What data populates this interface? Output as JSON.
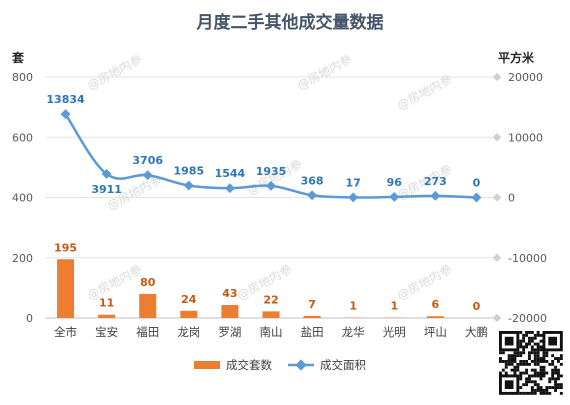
{
  "chart_data": {
    "type": "bar+line",
    "title": "月度二手其他成交量数据",
    "left_axis_unit": "套",
    "right_axis_unit": "平方米",
    "categories": [
      "全市",
      "宝安",
      "福田",
      "龙岗",
      "罗湖",
      "南山",
      "盐田",
      "龙华",
      "光明",
      "坪山",
      "大鹏"
    ],
    "left_ylim": [
      0,
      800
    ],
    "left_ticks": [
      "0",
      "200",
      "400",
      "600",
      "800"
    ],
    "right_ylim": [
      -20000,
      20000
    ],
    "right_ticks": [
      "-20000",
      "-10000",
      "0",
      "10000",
      "20000"
    ],
    "series": [
      {
        "name": "成交套数",
        "kind": "bar",
        "axis": "left",
        "color": "#ed7d31",
        "values": [
          195,
          11,
          80,
          24,
          43,
          22,
          7,
          1,
          1,
          6,
          0
        ]
      },
      {
        "name": "成交面积",
        "kind": "line",
        "axis": "right",
        "color": "#5b9bd5",
        "values": [
          13834,
          3911,
          3706,
          1985,
          1544,
          1935,
          368,
          17,
          96,
          273,
          0
        ]
      }
    ],
    "grid": true,
    "legend_position": "bottom"
  },
  "watermark": "@房地内参"
}
